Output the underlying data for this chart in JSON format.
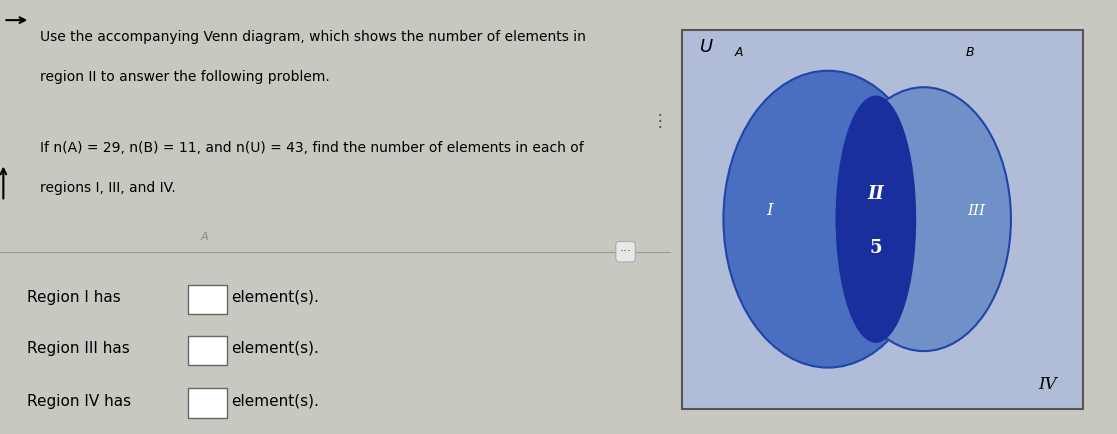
{
  "title_text_line1": "Use the accompanying Venn diagram, which shows the number of elements in",
  "title_text_line2": "region II to answer the following problem.",
  "subtitle_text_line1": "If n(A) = 29, n(B) = 11, and n(U) = 43, find the number of elements in each of",
  "subtitle_text_line2": "regions I, III, and IV.",
  "region_I_label": "Region I has",
  "region_III_label": "Region III has",
  "region_IV_label": "Region IV has",
  "element_suffix": "element(s).",
  "venn_U_label": "U",
  "venn_A_label": "A",
  "venn_B_label": "B",
  "venn_region_I": "I",
  "venn_region_II": "II",
  "venn_region_III": "III",
  "venn_region_IV": "IV",
  "venn_II_value": "5",
  "circle_A_color": "#4a6fc0",
  "circle_B_color": "#7090c8",
  "intersection_color": "#1a2f9e",
  "venn_box_color": "#b0bcd8",
  "top_bg_color": "#d4d4cc",
  "bot_bg_color": "#ccccc4",
  "outer_bg_color": "#c8c8c0",
  "text_color": "#000000",
  "white_text": "#ffffff",
  "figsize": [
    11.17,
    4.34
  ],
  "dpi": 100
}
